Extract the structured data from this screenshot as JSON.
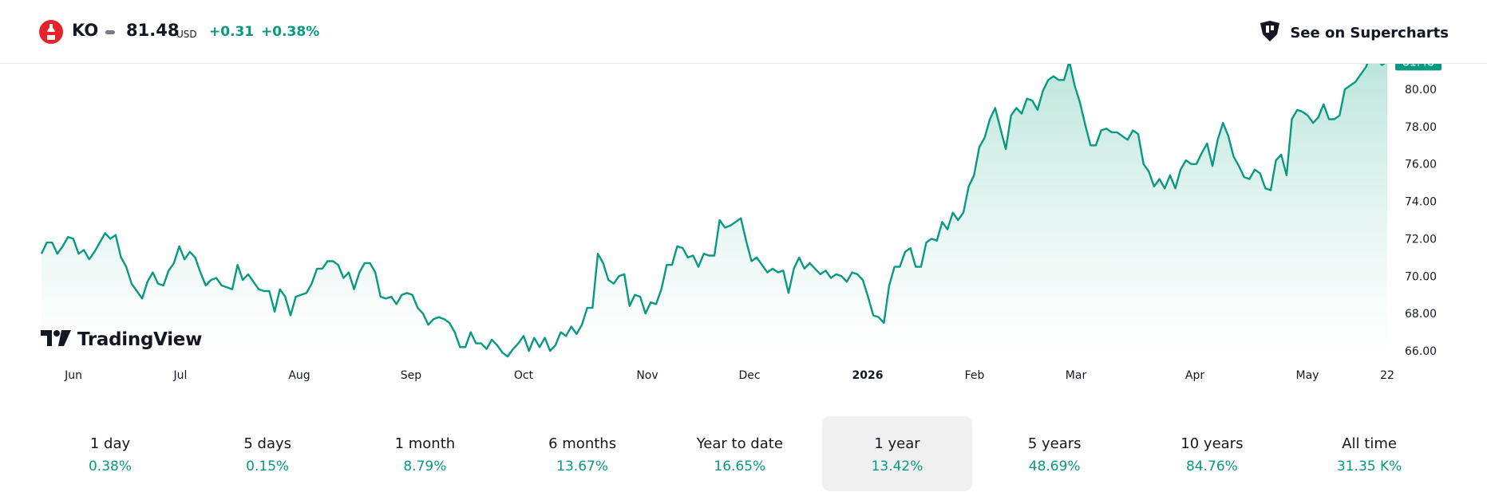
{
  "header": {
    "logo_icon": "coca-cola-bottle-icon",
    "symbol": "KO",
    "price": "81.48",
    "currency": "USD",
    "change": "+0.31",
    "change_percent": "+0.38%",
    "supercharts_label": "See on Supercharts",
    "supercharts_icon": "tradingview-crown-icon"
  },
  "watermark": {
    "text": "TradingView"
  },
  "colors": {
    "line": "#089981",
    "area_top": "#b9e4da",
    "area_bottom": "#ffffff",
    "price_label_bg": "#089981"
  },
  "chart_data": {
    "type": "area",
    "x_tick_labels": [
      "Jun",
      "Jul",
      "Aug",
      "Sep",
      "Oct",
      "Nov",
      "Dec",
      "2026",
      "Feb",
      "Mar",
      "Apr",
      "May",
      "22"
    ],
    "x_tick_bold": [
      "2026"
    ],
    "y_tick_labels": [
      "66.00",
      "68.00",
      "70.00",
      "72.00",
      "74.00",
      "76.00",
      "78.00",
      "80.00"
    ],
    "ylim": [
      65.9,
      82.0
    ],
    "last_price_label": "81.48",
    "grid": false,
    "series": [
      {
        "values": [
          71.2,
          71.8,
          71.8,
          71.2,
          71.6,
          72.1,
          72.0,
          71.2,
          71.4,
          70.9,
          71.3,
          71.8,
          72.3,
          72.0,
          72.2,
          71.0,
          70.5,
          69.6,
          69.2,
          68.8,
          69.7,
          70.2,
          69.6,
          69.5,
          70.3,
          70.7,
          71.6,
          70.9,
          71.3,
          71.0,
          70.2,
          69.5,
          69.8,
          69.9,
          69.5,
          69.4,
          69.3,
          70.6,
          69.8,
          70.1,
          69.7,
          69.3,
          69.2,
          69.2,
          68.1,
          69.3,
          68.9,
          67.9,
          68.9,
          69.0,
          69.1,
          69.6,
          70.4,
          70.4,
          70.8,
          70.8,
          70.6,
          69.9,
          70.2,
          69.3,
          70.2,
          70.7,
          70.7,
          70.2,
          68.9,
          68.8,
          68.9,
          68.5,
          69.0,
          69.1,
          69.0,
          68.3,
          68.0,
          67.4,
          67.7,
          67.8,
          67.7,
          67.5,
          67.0,
          66.2,
          66.2,
          67.0,
          66.4,
          66.4,
          66.1,
          66.6,
          66.3,
          65.9,
          65.7,
          66.1,
          66.4,
          66.8,
          66.0,
          66.7,
          66.2,
          66.7,
          66.0,
          66.3,
          67.0,
          66.8,
          67.3,
          66.9,
          67.4,
          68.3,
          68.3,
          71.2,
          70.7,
          69.8,
          69.6,
          70.0,
          70.1,
          68.4,
          69.0,
          68.9,
          68.0,
          68.6,
          68.5,
          69.3,
          70.6,
          70.6,
          71.6,
          71.5,
          71.0,
          71.1,
          70.5,
          71.2,
          71.1,
          71.1,
          73.0,
          72.6,
          72.7,
          72.9,
          73.1,
          71.9,
          70.8,
          71.0,
          70.6,
          70.2,
          70.4,
          70.2,
          70.3,
          69.1,
          70.4,
          71.0,
          70.4,
          70.7,
          70.4,
          70.1,
          70.3,
          69.9,
          70.1,
          70.0,
          69.7,
          70.2,
          70.1,
          69.8,
          68.9,
          67.9,
          67.8,
          67.5,
          69.5,
          70.5,
          70.5,
          71.3,
          71.5,
          70.5,
          70.5,
          71.8,
          72.0,
          71.9,
          72.9,
          72.5,
          73.4,
          73.0,
          73.4,
          74.8,
          75.4,
          76.9,
          77.4,
          78.4,
          79.0,
          77.9,
          76.8,
          78.6,
          79.0,
          78.7,
          79.5,
          79.4,
          78.9,
          79.9,
          80.5,
          80.7,
          80.5,
          80.5,
          81.5,
          80.2,
          79.3,
          78.1,
          77.0,
          77.0,
          77.8,
          77.9,
          77.7,
          77.7,
          77.5,
          77.3,
          77.8,
          77.6,
          76.0,
          75.6,
          74.8,
          75.2,
          74.7,
          75.4,
          74.7,
          75.7,
          76.2,
          76.0,
          76.0,
          76.6,
          77.1,
          75.9,
          77.3,
          78.2,
          77.5,
          76.4,
          75.9,
          75.3,
          75.2,
          75.7,
          75.5,
          74.7,
          74.6,
          76.2,
          76.5,
          75.4,
          78.4,
          78.9,
          78.8,
          78.6,
          78.2,
          78.5,
          79.2,
          78.4,
          78.4,
          78.6,
          80.0,
          80.2,
          80.4,
          80.8,
          81.2,
          81.9,
          81.6,
          81.3,
          81.48
        ]
      }
    ]
  },
  "ranges": [
    {
      "label": "1 day",
      "value": "0.38%"
    },
    {
      "label": "5 days",
      "value": "0.15%"
    },
    {
      "label": "1 month",
      "value": "8.79%"
    },
    {
      "label": "6 months",
      "value": "13.67%"
    },
    {
      "label": "Year to date",
      "value": "16.65%"
    },
    {
      "label": "1 year",
      "value": "13.42%"
    },
    {
      "label": "5 years",
      "value": "48.69%"
    },
    {
      "label": "10 years",
      "value": "84.76%"
    },
    {
      "label": "All time",
      "value": "31.35 K%"
    }
  ],
  "active_range": "1 year"
}
